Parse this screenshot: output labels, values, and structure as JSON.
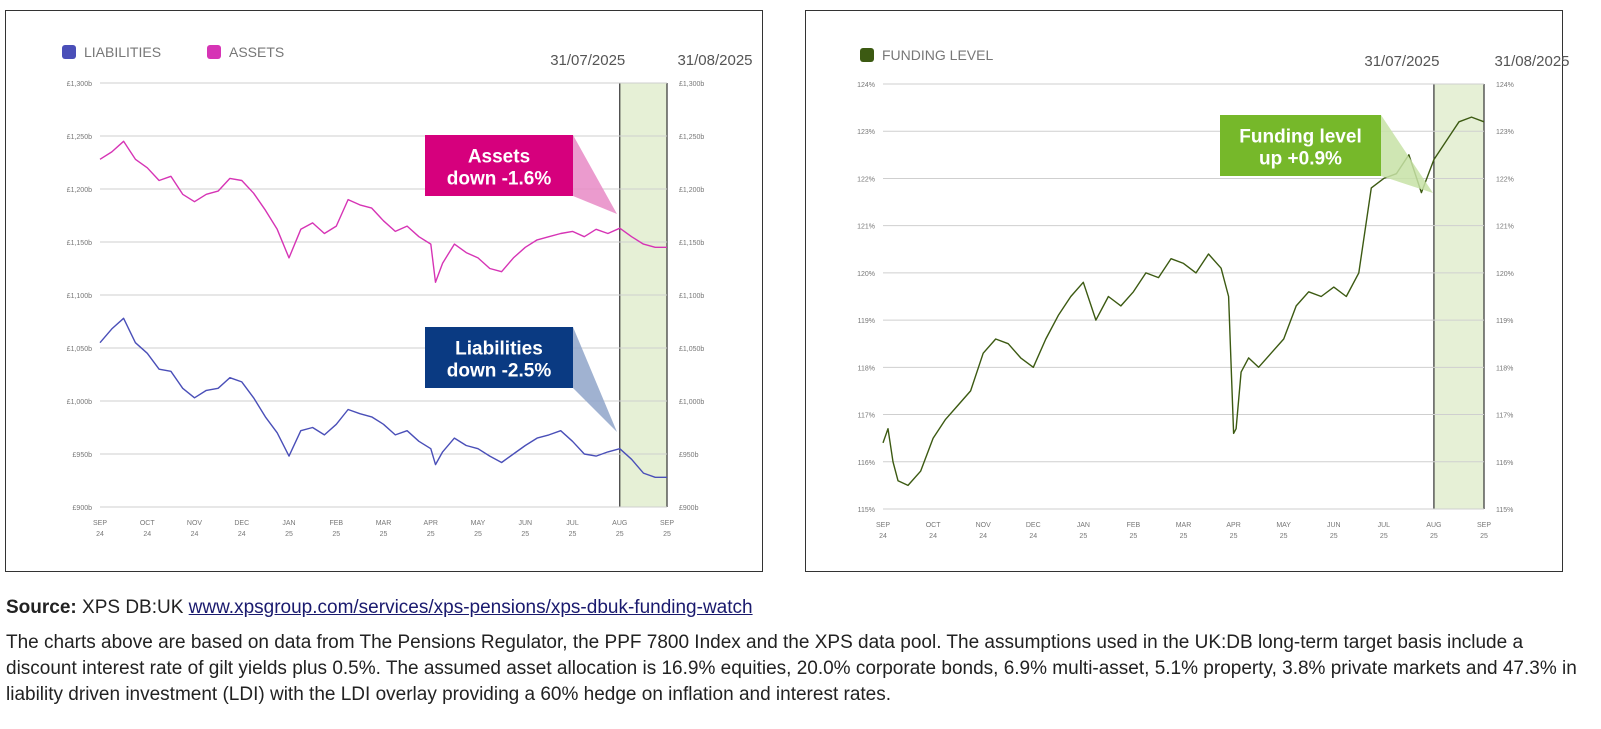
{
  "chart_data": [
    {
      "type": "line",
      "legend": [
        {
          "name": "LIABILITIES",
          "color": "#4a4fb8"
        },
        {
          "name": "ASSETS",
          "color": "#d634b5"
        }
      ],
      "legend_placement": "top-left",
      "highlight": {
        "from_label": "31/07/2025",
        "to_label": "31/08/2025",
        "color": "#e6f0d6"
      },
      "ylim": [
        900,
        1300
      ],
      "y_ticks": [
        "£1,300b",
        "£1,250b",
        "£1,200b",
        "£1,150b",
        "£1,100b",
        "£1,050b",
        "£1,000b",
        "£950b",
        "£900b"
      ],
      "y_tick_values": [
        1300,
        1250,
        1200,
        1150,
        1100,
        1050,
        1000,
        950,
        900
      ],
      "x_ticks": [
        {
          "m": "SEP",
          "y": "24"
        },
        {
          "m": "OCT",
          "y": "24"
        },
        {
          "m": "NOV",
          "y": "24"
        },
        {
          "m": "DEC",
          "y": "24"
        },
        {
          "m": "JAN",
          "y": "25"
        },
        {
          "m": "FEB",
          "y": "25"
        },
        {
          "m": "MAR",
          "y": "25"
        },
        {
          "m": "APR",
          "y": "25"
        },
        {
          "m": "MAY",
          "y": "25"
        },
        {
          "m": "JUN",
          "y": "25"
        },
        {
          "m": "JUL",
          "y": "25"
        },
        {
          "m": "AUG",
          "y": "25"
        },
        {
          "m": "SEP",
          "y": "25"
        }
      ],
      "grid": true,
      "series": [
        {
          "name": "ASSETS",
          "color": "#d634b5",
          "x": [
            0,
            0.25,
            0.5,
            0.75,
            1,
            1.25,
            1.5,
            1.75,
            2,
            2.25,
            2.5,
            2.75,
            3,
            3.25,
            3.5,
            3.75,
            4,
            4.25,
            4.5,
            4.75,
            5,
            5.25,
            5.5,
            5.75,
            6,
            6.25,
            6.5,
            6.75,
            7,
            7.1,
            7.25,
            7.5,
            7.75,
            8,
            8.25,
            8.5,
            8.75,
            9,
            9.25,
            9.5,
            9.75,
            10,
            10.25,
            10.5,
            10.75,
            11,
            11.25,
            11.5,
            11.75,
            12
          ],
          "values": [
            1228,
            1235,
            1245,
            1228,
            1220,
            1208,
            1212,
            1195,
            1188,
            1195,
            1198,
            1210,
            1208,
            1196,
            1180,
            1162,
            1135,
            1162,
            1168,
            1158,
            1165,
            1190,
            1185,
            1182,
            1170,
            1160,
            1165,
            1155,
            1148,
            1112,
            1130,
            1148,
            1140,
            1135,
            1125,
            1122,
            1135,
            1145,
            1152,
            1155,
            1158,
            1160,
            1155,
            1162,
            1158,
            1163,
            1155,
            1148,
            1145,
            1145
          ]
        },
        {
          "name": "LIABILITIES",
          "color": "#4a4fb8",
          "x": [
            0,
            0.25,
            0.5,
            0.75,
            1,
            1.25,
            1.5,
            1.75,
            2,
            2.25,
            2.5,
            2.75,
            3,
            3.25,
            3.5,
            3.75,
            4,
            4.25,
            4.5,
            4.75,
            5,
            5.25,
            5.5,
            5.75,
            6,
            6.25,
            6.5,
            6.75,
            7,
            7.1,
            7.25,
            7.5,
            7.75,
            8,
            8.25,
            8.5,
            8.75,
            9,
            9.25,
            9.5,
            9.75,
            10,
            10.25,
            10.5,
            10.75,
            11,
            11.25,
            11.5,
            11.75,
            12
          ],
          "values": [
            1055,
            1068,
            1078,
            1055,
            1045,
            1030,
            1028,
            1012,
            1003,
            1010,
            1012,
            1022,
            1018,
            1003,
            985,
            970,
            948,
            972,
            975,
            968,
            978,
            992,
            988,
            985,
            978,
            968,
            972,
            962,
            955,
            940,
            952,
            965,
            958,
            955,
            948,
            942,
            950,
            958,
            965,
            968,
            972,
            962,
            950,
            948,
            952,
            955,
            945,
            932,
            928,
            928
          ]
        }
      ],
      "annotations": [
        {
          "line1": "Assets",
          "line2": "down -1.6%",
          "color": "#d6007d",
          "tail_color": "#e88ac6"
        },
        {
          "line1": "Liabilities",
          "line2": "down -2.5%",
          "color": "#0a3a82",
          "tail_color": "#8fa5c9"
        }
      ]
    },
    {
      "type": "line",
      "legend": [
        {
          "name": "FUNDING LEVEL",
          "color": "#3c5a12"
        }
      ],
      "legend_placement": "top-left",
      "highlight": {
        "from_label": "31/07/2025",
        "to_label": "31/08/2025",
        "color": "#e6f0d6"
      },
      "ylim": [
        115,
        124
      ],
      "y_ticks": [
        "124%",
        "123%",
        "122%",
        "121%",
        "120%",
        "119%",
        "118%",
        "117%",
        "116%",
        "115%"
      ],
      "y_tick_values": [
        124,
        123,
        122,
        121,
        120,
        119,
        118,
        117,
        116,
        115
      ],
      "x_ticks": [
        {
          "m": "SEP",
          "y": "24"
        },
        {
          "m": "OCT",
          "y": "24"
        },
        {
          "m": "NOV",
          "y": "24"
        },
        {
          "m": "DEC",
          "y": "24"
        },
        {
          "m": "JAN",
          "y": "25"
        },
        {
          "m": "FEB",
          "y": "25"
        },
        {
          "m": "MAR",
          "y": "25"
        },
        {
          "m": "APR",
          "y": "25"
        },
        {
          "m": "MAY",
          "y": "25"
        },
        {
          "m": "JUN",
          "y": "25"
        },
        {
          "m": "JUL",
          "y": "25"
        },
        {
          "m": "AUG",
          "y": "25"
        },
        {
          "m": "SEP",
          "y": "25"
        }
      ],
      "grid": true,
      "series": [
        {
          "name": "FUNDING LEVEL",
          "color": "#3c5a12",
          "x": [
            0,
            0.1,
            0.2,
            0.3,
            0.5,
            0.75,
            1,
            1.25,
            1.5,
            1.75,
            2,
            2.25,
            2.5,
            2.75,
            3,
            3.25,
            3.5,
            3.75,
            4,
            4.25,
            4.5,
            4.75,
            5,
            5.25,
            5.5,
            5.75,
            6,
            6.25,
            6.5,
            6.75,
            6.9,
            7,
            7.05,
            7.15,
            7.3,
            7.5,
            7.75,
            8,
            8.25,
            8.5,
            8.75,
            9,
            9.25,
            9.5,
            9.75,
            10,
            10.25,
            10.5,
            10.75,
            11,
            11.25,
            11.5,
            11.75,
            12
          ],
          "values": [
            116.4,
            116.7,
            116.0,
            115.6,
            115.5,
            115.8,
            116.5,
            116.9,
            117.2,
            117.5,
            118.3,
            118.6,
            118.5,
            118.2,
            118.0,
            118.6,
            119.1,
            119.5,
            119.8,
            119.0,
            119.5,
            119.3,
            119.6,
            120.0,
            119.9,
            120.3,
            120.2,
            120.0,
            120.4,
            120.1,
            119.5,
            116.6,
            116.7,
            117.9,
            118.2,
            118.0,
            118.3,
            118.6,
            119.3,
            119.6,
            119.5,
            119.7,
            119.5,
            120.0,
            121.8,
            122.0,
            122.1,
            122.5,
            121.7,
            122.4,
            122.8,
            123.2,
            123.3,
            123.2
          ]
        }
      ],
      "annotations": [
        {
          "line1": "Funding level",
          "line2": "up +0.9%",
          "color": "#76b82a",
          "tail_color": "#c7e2a6"
        }
      ]
    }
  ],
  "source": {
    "label": "Source:",
    "text": " XPS DB:UK ",
    "link": "www.xpsgroup.com/services/xps-pensions/xps-dbuk-funding-watch"
  },
  "notes": "The charts above are based on data from The Pensions Regulator, the PPF 7800 Index and the XPS data pool. The assumptions used in the UK:DB long-term target basis include a discount interest rate of gilt yields plus 0.5%. The assumed asset allocation is 16.9% equities, 20.0% corporate bonds, 6.9% multi-asset, 5.1% property, 3.8% private markets and 47.3% in liability driven investment (LDI) with the LDI overlay providing a 60% hedge on inflation and interest rates."
}
